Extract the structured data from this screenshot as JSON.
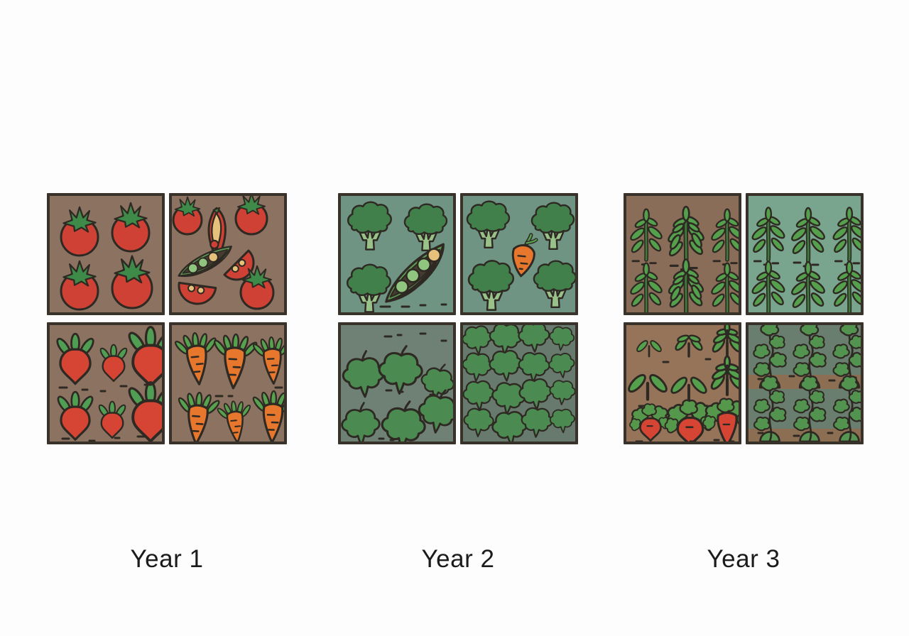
{
  "page": {
    "background": "#fdfdfd"
  },
  "colors": {
    "outline": "#2e2922",
    "plotBorder": "#39322a",
    "soil_year1": "#8c7260",
    "soil_year3_a": "#8a6d59",
    "soil_year3_b": "#957459",
    "teal_year2": "#6f9484",
    "teal_year3": "#79a48e",
    "grey_year2_a": "#6e8174",
    "grey_year2_b": "#687a6e",
    "grey_year3": "#697e6f",
    "band_brown": "#8c6e53",
    "tomato": "#cf4134",
    "calyx": "#3e8a48",
    "flesh": "#e5c17c",
    "pod": "#5d9a55",
    "podLight": "#7dbd72",
    "podDark": "#453c31",
    "pea": "#8fc57e",
    "radish": "#d64434",
    "radishLeaf": "#4f9e53",
    "carrot": "#e8772e",
    "frond": "#57a24f",
    "broccoli": "#41804b",
    "stalk": "#99c28a",
    "leaf": "#4b8b52",
    "plantLeaf": "#55a04d",
    "plantStem": "#3d7a3c",
    "vine": "#539350",
    "mound": "#569552",
    "rootLeaf": "#55984b"
  },
  "years": [
    {
      "label": "Year 1",
      "plots": [
        {
          "id": "tomatoes",
          "icon": "tomato-icon",
          "soil": "soil_year1",
          "count": 4
        },
        {
          "id": "tomato-harvest",
          "icon": "tomato-slice-icon",
          "soil": "soil_year1",
          "count": 3
        },
        {
          "id": "radishes",
          "icon": "radish-icon",
          "soil": "soil_year1",
          "count": 6
        },
        {
          "id": "carrots",
          "icon": "carrot-icon",
          "soil": "soil_year1",
          "count": 6
        }
      ]
    },
    {
      "label": "Year 2",
      "plots": [
        {
          "id": "broccoli-peapod",
          "icon": "broccoli-icon",
          "soil": "teal_year2",
          "count": 3
        },
        {
          "id": "broccoli-carrot",
          "icon": "broccoli-icon",
          "soil": "teal_year2",
          "count": 4
        },
        {
          "id": "greens-sparse",
          "icon": "leaf-icon",
          "soil": "grey_year2_a",
          "count": 6
        },
        {
          "id": "greens-dense",
          "icon": "leaf-icon",
          "soil": "grey_year2_b",
          "count": 16
        }
      ]
    },
    {
      "label": "Year 3",
      "plots": [
        {
          "id": "legumes-soil",
          "icon": "legume-plant-icon",
          "soil": "soil_year3_a",
          "count": 6
        },
        {
          "id": "legumes-cover",
          "icon": "legume-plant-icon",
          "soil": "teal_year3",
          "count": 6
        },
        {
          "id": "seedlings-roots",
          "icon": "seedling-icon",
          "soil": "soil_year3_b",
          "count": 9
        },
        {
          "id": "vines",
          "icon": "vine-plant-icon",
          "soil": "grey_year3",
          "count": 6
        }
      ]
    }
  ]
}
